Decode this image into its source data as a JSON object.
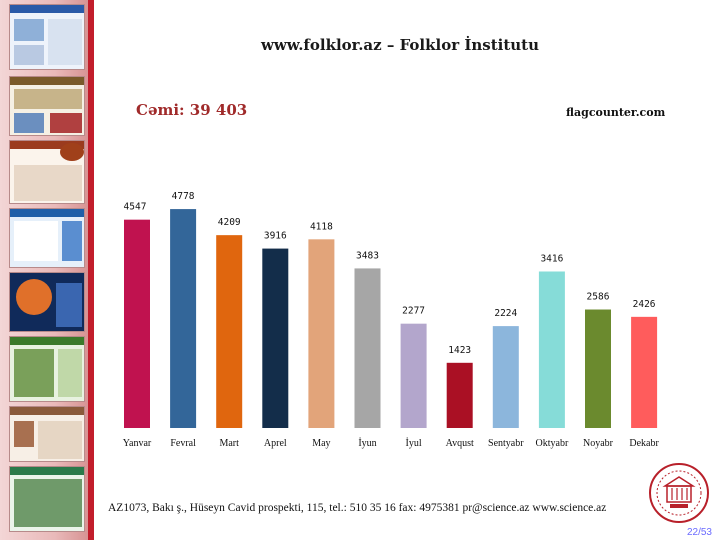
{
  "slide": {
    "title": "www.folklor.az – Folklor İnstitutu",
    "total_label": "Cəmi: 39 403",
    "source_label": "flagcounter.com",
    "footer_text": "AZ1073, Bakı ş., Hüseyn Cavid prospekti, 115, tel.: 510 35 16 fax: 4975381 pr@science.az www.science.az",
    "page_number": "22/53",
    "colors": {
      "sidebar_accent": "#c21d2b",
      "total_text": "#a02a2a"
    }
  },
  "chart_data": {
    "type": "bar",
    "title": "",
    "xlabel": "",
    "ylabel": "",
    "ylim": [
      0,
      5000
    ],
    "grid": false,
    "legend": "none",
    "categories": [
      "Yanvar",
      "Fevral",
      "Mart",
      "Aprel",
      "May",
      "İyun",
      "İyul",
      "Avqust",
      "Sentyabr",
      "Oktyabr",
      "Noyabr",
      "Dekabr"
    ],
    "values": [
      4547,
      4778,
      4209,
      3916,
      4118,
      3483,
      2277,
      1423,
      2224,
      3416,
      2586,
      2426
    ],
    "value_labels": [
      "4547",
      "4778",
      "4209",
      "3916",
      "4118",
      "3483",
      "2277",
      "1423",
      "2224",
      "3416",
      "2586",
      "2426"
    ],
    "colors": [
      "#c0124f",
      "#336699",
      "#e0660e",
      "#132d4a",
      "#e2a47a",
      "#a6a6a6",
      "#b3a6cc",
      "#aa1024",
      "#8cb6dc",
      "#86dcd8",
      "#6b8a2e",
      "#ff5c5c"
    ]
  }
}
